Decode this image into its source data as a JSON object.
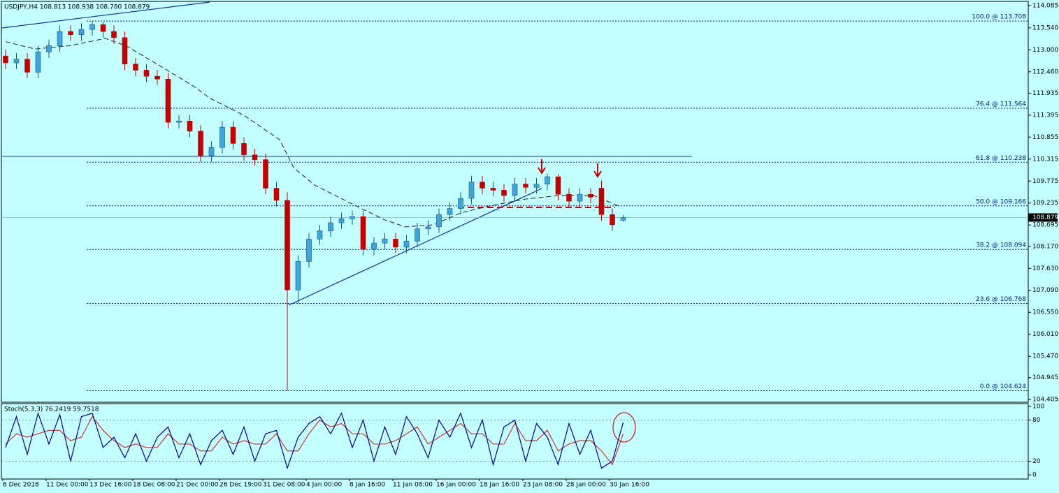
{
  "chart_data": {
    "type": "candlestick",
    "title": "USDJPY,H4  108.813 108.938 108.780 108.879",
    "categories": [
      "6 Dec 2018",
      null,
      null,
      null,
      "11 Dec 00:00",
      null,
      null,
      null,
      "13 Dec 16:00",
      null,
      null,
      null,
      "18 Dec 08:00",
      null,
      null,
      null,
      "21 Dec 00:00",
      null,
      null,
      null,
      "26 Dec 19:00",
      null,
      null,
      null,
      "31 Dec 08:00",
      null,
      null,
      null,
      "4 Jan 00:00",
      null,
      null,
      null,
      "8 Jan 16:00",
      null,
      null,
      null,
      "11 Jan 08:00",
      null,
      null,
      null,
      "16 Jan 00:00",
      null,
      null,
      null,
      "18 Jan 16:00",
      null,
      null,
      null,
      "23 Jan 08:00",
      null,
      null,
      null,
      "28 Jan 00:00",
      null,
      null,
      null,
      "30 Jan 16:00",
      null
    ],
    "open": [
      112.85,
      112.68,
      112.77,
      112.45,
      112.95,
      113.1,
      113.45,
      113.37,
      113.5,
      113.62,
      113.45,
      113.3,
      112.65,
      112.5,
      112.35,
      112.28,
      111.22,
      111.25,
      111.0,
      110.4,
      110.6,
      111.1,
      110.7,
      110.42,
      110.3,
      109.6,
      109.3,
      107.1,
      107.8,
      108.35,
      108.55,
      108.75,
      108.85,
      108.9,
      108.1,
      108.25,
      108.35,
      108.15,
      108.3,
      108.6,
      108.65,
      108.95,
      109.1,
      109.35,
      109.75,
      109.6,
      109.55,
      109.42,
      109.7,
      109.62,
      109.7,
      109.88,
      109.45,
      109.28,
      109.45,
      109.6,
      108.95,
      108.813
    ],
    "high": [
      113.0,
      112.92,
      112.92,
      113.1,
      113.25,
      113.6,
      113.6,
      113.65,
      113.708,
      113.68,
      113.6,
      113.45,
      112.8,
      112.65,
      112.5,
      112.43,
      111.4,
      111.4,
      111.15,
      110.75,
      111.25,
      111.25,
      110.85,
      110.57,
      110.45,
      109.75,
      109.5,
      107.95,
      108.5,
      108.7,
      108.9,
      109.0,
      109.05,
      109.05,
      108.4,
      108.5,
      108.5,
      108.45,
      108.75,
      108.8,
      109.1,
      109.25,
      109.5,
      109.9,
      109.9,
      109.75,
      109.7,
      109.85,
      109.85,
      109.85,
      109.95,
      109.95,
      109.6,
      109.6,
      109.6,
      109.78,
      109.1,
      108.938
    ],
    "low": [
      112.53,
      112.53,
      112.3,
      112.3,
      112.8,
      112.95,
      113.22,
      113.22,
      113.35,
      113.3,
      113.15,
      112.5,
      112.35,
      112.2,
      112.13,
      111.07,
      111.07,
      110.85,
      110.25,
      110.25,
      110.45,
      110.55,
      110.27,
      110.15,
      109.45,
      109.15,
      104.624,
      106.768,
      107.65,
      108.2,
      108.4,
      108.6,
      108.7,
      107.95,
      107.95,
      108.1,
      108.0,
      108.0,
      108.15,
      108.45,
      108.5,
      108.8,
      108.95,
      109.2,
      109.45,
      109.4,
      109.27,
      109.27,
      109.47,
      109.47,
      109.55,
      109.3,
      109.13,
      109.13,
      109.23,
      108.8,
      108.55,
      108.78
    ],
    "close": [
      112.68,
      112.77,
      112.45,
      112.95,
      113.1,
      113.45,
      113.37,
      113.5,
      113.62,
      113.45,
      113.3,
      112.65,
      112.5,
      112.35,
      112.28,
      111.22,
      111.25,
      111.0,
      110.4,
      110.6,
      111.1,
      110.7,
      110.42,
      110.3,
      109.6,
      109.3,
      107.1,
      107.8,
      108.35,
      108.55,
      108.75,
      108.85,
      108.9,
      108.1,
      108.25,
      108.35,
      108.15,
      108.3,
      108.6,
      108.65,
      108.95,
      109.1,
      109.35,
      109.75,
      109.6,
      109.55,
      109.42,
      109.7,
      109.62,
      109.7,
      109.88,
      109.45,
      109.28,
      109.45,
      109.38,
      108.95,
      108.7,
      108.879
    ],
    "bull_color": "#3ea6dc",
    "bear_color": "#c40000",
    "ylim": [
      104.34,
      114.19
    ],
    "yticks": [
      114.085,
      {
        "value": 113.54,
        "label": "113.540"
      },
      {
        "value": 113.0,
        "label": "113.000"
      },
      {
        "value": 112.46,
        "label": "112.460"
      },
      111.935,
      111.395,
      110.855,
      110.315,
      109.775,
      109.235,
      108.695,
      {
        "value": 108.17,
        "label": "108.170"
      },
      {
        "value": 107.63,
        "label": "107.630"
      },
      {
        "value": 107.09,
        "label": "107.090"
      },
      {
        "value": 106.55,
        "label": "106.550"
      },
      {
        "value": 106.01,
        "label": "106.010"
      },
      {
        "value": 105.47,
        "label": "105.470"
      },
      104.945,
      104.405
    ],
    "last_price": 108.879,
    "moving_average": {
      "color": "#222222",
      "x": [
        0,
        2.7,
        5.9,
        9.2,
        11.1,
        14.3,
        17.5,
        18.8,
        22,
        25.3,
        26.6,
        28.5,
        31.7,
        35,
        36.9,
        39.5,
        42,
        44.6,
        47.9,
        51.1,
        54.3,
        56.6
      ],
      "values": [
        113.2,
        113.02,
        113.1,
        113.28,
        113.1,
        112.6,
        112.08,
        111.82,
        111.39,
        110.79,
        110.1,
        109.68,
        109.25,
        108.82,
        108.65,
        108.7,
        108.99,
        109.16,
        109.33,
        109.42,
        109.42,
        109.16
      ]
    },
    "fib_levels": [
      {
        "label": "100.0 @ 113.708",
        "value": 113.708
      },
      {
        "label": "76.4 @ 111.564",
        "value": 111.564
      },
      {
        "label": "61.8 @ 110.238",
        "value": 110.238
      },
      {
        "label": "50.0 @ 109.166",
        "value": 109.166
      },
      {
        "label": "38.2 @ 108.094",
        "value": 108.094
      },
      {
        "label": "23.6 @ 106.768",
        "value": 106.768
      },
      {
        "label": "0.0 @ 104.624",
        "value": 104.624
      }
    ],
    "stochastic": {
      "title": "Stoch(5,3,3) 76.2419 59.7518",
      "main_color": "#000090",
      "signal_color": "#d03030",
      "main": [
        40,
        85,
        30,
        90,
        45,
        88,
        20,
        85,
        90,
        40,
        55,
        25,
        60,
        20,
        55,
        70,
        25,
        60,
        15,
        50,
        65,
        30,
        70,
        20,
        60,
        65,
        10,
        55,
        75,
        85,
        60,
        90,
        40,
        80,
        20,
        70,
        30,
        85,
        60,
        25,
        80,
        55,
        90,
        40,
        80,
        15,
        70,
        80,
        20,
        75,
        55,
        15,
        75,
        30,
        65,
        10,
        20,
        76.2419
      ],
      "signal": [
        45,
        60,
        55,
        60,
        65,
        65,
        50,
        55,
        85,
        65,
        50,
        40,
        45,
        40,
        40,
        60,
        45,
        45,
        35,
        35,
        55,
        45,
        50,
        45,
        45,
        60,
        35,
        35,
        60,
        80,
        70,
        75,
        60,
        60,
        45,
        45,
        50,
        60,
        70,
        45,
        55,
        65,
        75,
        60,
        60,
        45,
        45,
        75,
        50,
        50,
        65,
        35,
        45,
        50,
        50,
        35,
        15,
        59.7518
      ],
      "ylim": [
        -6,
        104
      ],
      "yticks": [
        100,
        80,
        20,
        0
      ],
      "levels": [
        80,
        20
      ]
    }
  }
}
